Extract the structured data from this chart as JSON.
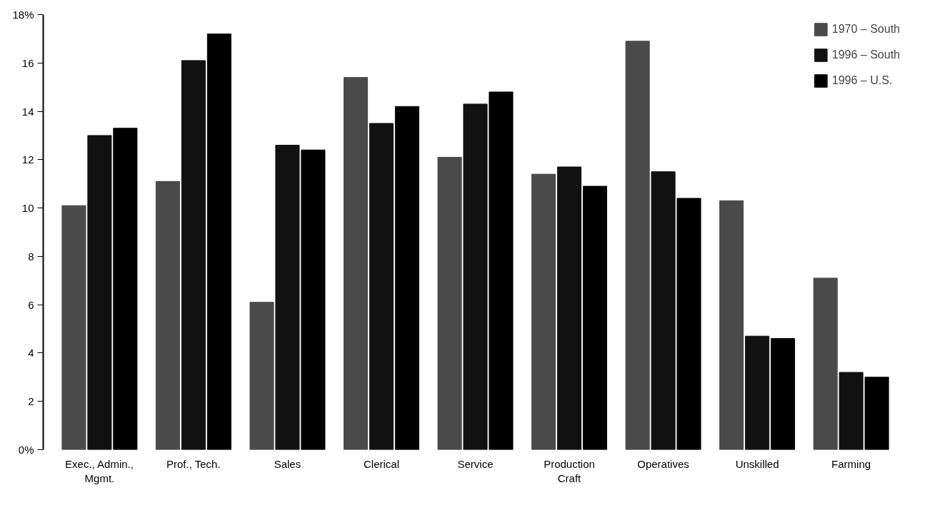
{
  "chart_data": {
    "type": "bar",
    "categories": [
      "Exec., Admin.,\nMgmt.",
      "Prof., Tech.",
      "Sales",
      "Clerical",
      "Service",
      "Production\nCraft",
      "Operatives",
      "Unskilled",
      "Farming"
    ],
    "series": [
      {
        "name": "1970 – South",
        "color": "#4a4a4a",
        "values": [
          10.1,
          11.1,
          6.1,
          15.4,
          12.1,
          11.4,
          16.9,
          10.3,
          7.1
        ]
      },
      {
        "name": "1996 – South",
        "color": "#111111",
        "values": [
          13.0,
          16.1,
          12.6,
          13.5,
          14.3,
          11.7,
          11.5,
          4.7,
          3.2
        ]
      },
      {
        "name": "1996 – U.S.",
        "color": "#000000",
        "values": [
          13.3,
          17.2,
          12.4,
          14.2,
          14.8,
          10.9,
          10.4,
          4.6,
          3.0
        ]
      }
    ],
    "ylim": [
      0,
      18
    ],
    "yticks": [
      {
        "value": 0,
        "label": "0%"
      },
      2,
      4,
      6,
      8,
      10,
      12,
      14,
      16,
      {
        "value": 18,
        "label": "18%"
      }
    ],
    "grid": false,
    "legend": "top right"
  }
}
